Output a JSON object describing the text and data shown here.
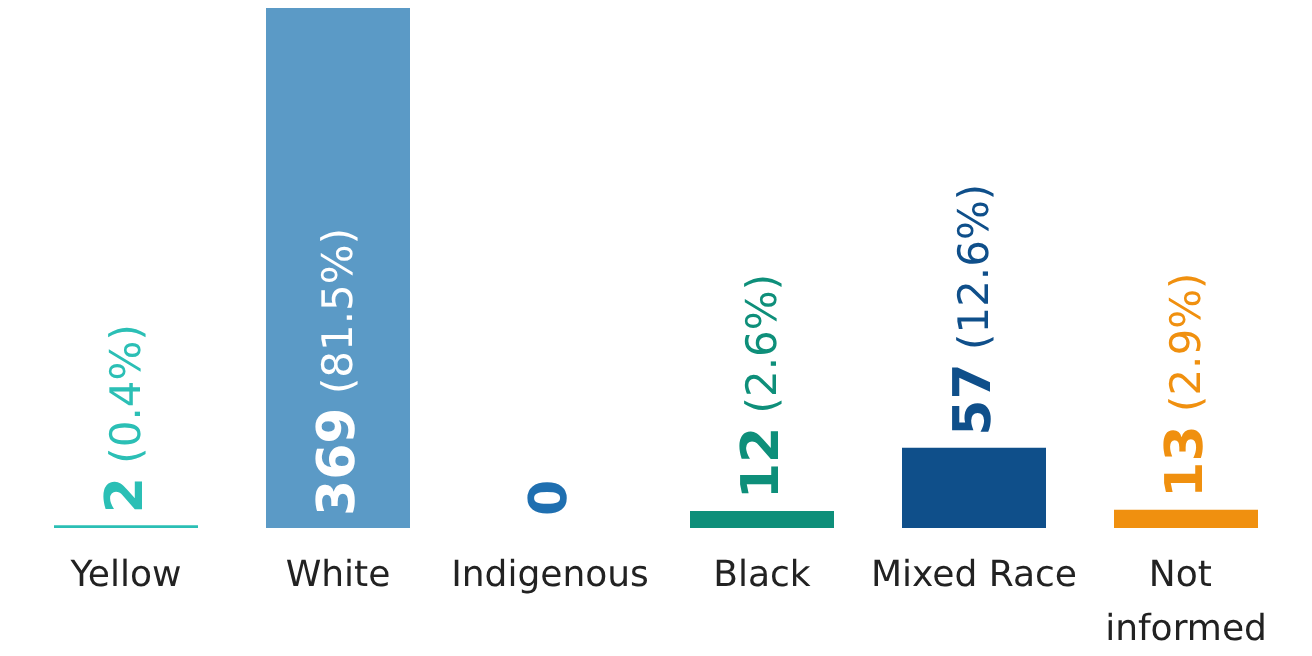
{
  "chart_data": {
    "type": "bar",
    "categories": [
      "Yellow",
      "White",
      "Indigenous",
      "Black",
      "Mixed Race",
      "Not informed"
    ],
    "values": [
      2,
      369,
      0,
      12,
      57,
      13
    ],
    "colors": [
      "#2bbfb5",
      "#5b9ac6",
      "#1f6fb0",
      "#0e8f7a",
      "#0f4f8a",
      "#f0900f"
    ],
    "value_labels": [
      "2 (0.4%)",
      "369 (81.5%)",
      "0",
      "12 (2.6%)",
      "57 (12.6%)",
      "13 (2.9%)"
    ]
  }
}
